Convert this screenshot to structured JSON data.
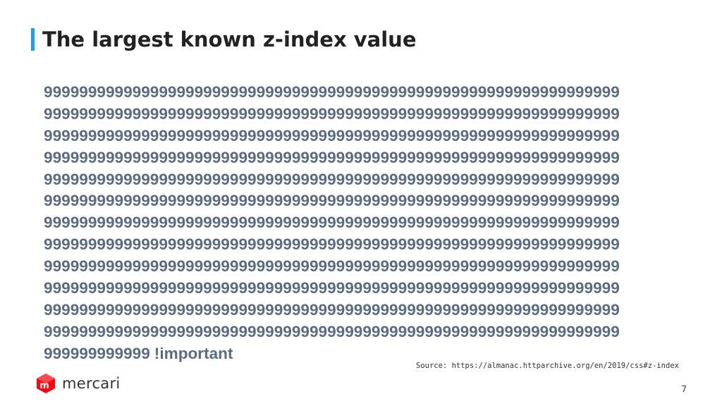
{
  "slide": {
    "title": "The largest known z-index value",
    "accent_color": "#1fa0e6",
    "value_color": "#5b6b82",
    "value_lines": [
      "99999999999999999999999999999999999999999999999999999999999999999",
      "99999999999999999999999999999999999999999999999999999999999999999",
      "99999999999999999999999999999999999999999999999999999999999999999",
      "99999999999999999999999999999999999999999999999999999999999999999",
      "99999999999999999999999999999999999999999999999999999999999999999",
      "99999999999999999999999999999999999999999999999999999999999999999",
      "99999999999999999999999999999999999999999999999999999999999999999",
      "99999999999999999999999999999999999999999999999999999999999999999",
      "99999999999999999999999999999999999999999999999999999999999999999",
      "99999999999999999999999999999999999999999999999999999999999999999",
      "99999999999999999999999999999999999999999999999999999999999999999",
      "99999999999999999999999999999999999999999999999999999999999999999"
    ],
    "value_last_line": "999999999999",
    "important_text": "!important",
    "source": "Source: https://almanac.httparchive.org/en/2019/css#z-index",
    "page_number": "7"
  },
  "logo": {
    "text": "mercari",
    "icon": "mercari-logo-icon",
    "icon_letter": "m",
    "icon_color": "#ff0211"
  }
}
